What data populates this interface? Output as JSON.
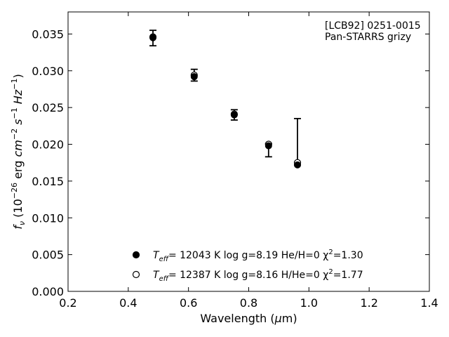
{
  "chart_data": {
    "type": "scatter",
    "xlabel": "Wavelength (μm)",
    "ylabel": "fν (10⁻²⁶ erg cm⁻² s⁻¹ Hz⁻¹)",
    "xlim": [
      0.2,
      1.4
    ],
    "ylim": [
      0.0,
      0.038
    ],
    "x_ticks": [
      "0.2",
      "0.4",
      "0.6",
      "0.8",
      "1.0",
      "1.2",
      "1.4"
    ],
    "y_ticks": [
      "0.000",
      "0.005",
      "0.010",
      "0.015",
      "0.020",
      "0.025",
      "0.030",
      "0.035"
    ],
    "grid": false,
    "annotation": [
      "[LCB92] 0251-0015",
      "Pan-STARRS grizy"
    ],
    "observed": {
      "x": [
        0.482,
        0.619,
        0.752,
        0.866,
        0.962
      ],
      "y": [
        0.0345,
        0.0294,
        0.024,
        0.0198,
        0.0172
      ],
      "yerr_low": [
        0.0011,
        0.0008,
        0.0007,
        0.0015,
        0.0
      ],
      "yerr_high": [
        0.001,
        0.0008,
        0.0007,
        0.0003,
        0.0063
      ]
    },
    "series": [
      {
        "name": "Teff= 12043 K  log g=8.19  He/H=0  χ2=1.30",
        "marker": "filled-circle",
        "x": [
          0.482,
          0.619,
          0.752,
          0.866,
          0.962
        ],
        "y": [
          0.0345,
          0.0292,
          0.024,
          0.0198,
          0.0172
        ]
      },
      {
        "name": "Teff= 12387 K  log g=8.16  H/He=0  χ2=1.77",
        "marker": "open-circle",
        "x": [
          0.482,
          0.619,
          0.752,
          0.866,
          0.962
        ],
        "y": [
          0.0346,
          0.0294,
          0.0241,
          0.02,
          0.0175
        ]
      }
    ],
    "legend": [
      {
        "pre": "T",
        "sub": "eff",
        "post": "= 12043 K  log g=8.19  He/H=0  χ",
        "sup": "2",
        "tail": "=1.30"
      },
      {
        "pre": "T",
        "sub": "eff",
        "post": "= 12387 K  log g=8.16  H/He=0  χ",
        "sup": "2",
        "tail": "=1.77"
      }
    ],
    "legend_position": "lower-center",
    "colors": {
      "marker": "#000000",
      "axes": "#000000"
    }
  }
}
